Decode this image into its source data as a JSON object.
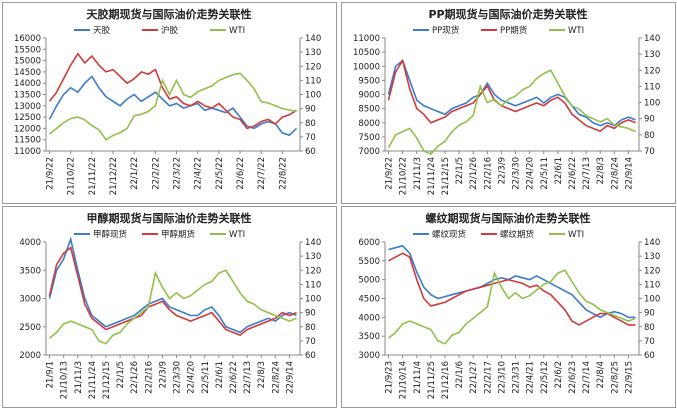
{
  "chart_data": [
    {
      "type": "line",
      "title": "天胶期现货与国际油价走势关联性",
      "legend": "top",
      "grid": false,
      "categories": [
        "21/9/22",
        null,
        null,
        "21/10/22",
        null,
        null,
        "21/11/22",
        null,
        null,
        "21/12/22",
        null,
        null,
        "22/1/22",
        null,
        null,
        "22/2/22",
        null,
        null,
        "22/3/22",
        null,
        null,
        "22/4/22",
        null,
        null,
        "22/5/22",
        null,
        null,
        "22/6/22",
        null,
        null,
        "22/7/22",
        null,
        null,
        "22/8/22",
        null,
        null
      ],
      "ylim": [
        11000,
        16000
      ],
      "yticks": [
        11000,
        11500,
        12000,
        12500,
        13000,
        13500,
        14000,
        14500,
        15000,
        15500,
        16000
      ],
      "y2lim": [
        60,
        140
      ],
      "y2ticks": [
        60,
        70,
        80,
        90,
        100,
        110,
        120,
        130,
        140
      ],
      "series": [
        {
          "name": "天胶",
          "color": "#3d7cc9",
          "values": [
            12400,
            13000,
            13500,
            13800,
            13600,
            14000,
            14300,
            13800,
            13400,
            13200,
            13000,
            13300,
            13500,
            13200,
            13400,
            13600,
            13300,
            13000,
            13100,
            12900,
            13000,
            13100,
            12800,
            12900,
            12800,
            12700,
            12900,
            12500,
            12100,
            12000,
            12200,
            12300,
            12200,
            11800,
            11700,
            12000
          ]
        },
        {
          "name": "沪胶",
          "color": "#d03a3a",
          "values": [
            13200,
            13600,
            14200,
            14800,
            15300,
            14900,
            15200,
            14800,
            14500,
            14600,
            14300,
            14000,
            14200,
            14500,
            14400,
            14600,
            13800,
            13300,
            13400,
            13100,
            13000,
            13200,
            13000,
            12900,
            13100,
            12800,
            12500,
            12400,
            12000,
            12100,
            12300,
            12400,
            12200,
            12500,
            12600,
            12800
          ]
        },
        {
          "name": "WTI",
          "color": "#92c04a",
          "axis": "y2",
          "values": [
            72,
            76,
            80,
            83,
            84,
            82,
            78,
            75,
            68,
            71,
            73,
            76,
            85,
            86,
            88,
            92,
            110,
            100,
            110,
            100,
            98,
            102,
            104,
            106,
            110,
            112,
            114,
            115,
            110,
            104,
            95,
            94,
            92,
            90,
            89,
            88
          ]
        }
      ]
    },
    {
      "type": "line",
      "title": "PP期现货与国际油价走势关联性",
      "legend": "top",
      "grid": false,
      "categories": [
        "21/9/22",
        null,
        "21/10/22",
        null,
        "21/11/3",
        null,
        "21/11/24",
        null,
        "21/12/15",
        null,
        "22/1/5",
        null,
        "22/1/26",
        null,
        "22/2/16",
        null,
        "22/3/9",
        null,
        "22/3/30",
        null,
        "22/4/20",
        null,
        "22/5/11",
        null,
        "22/6/1",
        null,
        "22/6/22",
        null,
        "22/7/13",
        null,
        "22/8/3",
        null,
        "22/8/24",
        null,
        "22/9/14",
        null
      ],
      "ylim": [
        7000,
        11000
      ],
      "yticks": [
        7000,
        7500,
        8000,
        8500,
        9000,
        9500,
        10000,
        10500,
        11000
      ],
      "y2lim": [
        70,
        140
      ],
      "y2ticks": [
        70,
        80,
        90,
        100,
        110,
        120,
        130,
        140
      ],
      "series": [
        {
          "name": "PP现货",
          "color": "#3d7cc9",
          "values": [
            9000,
            10000,
            10200,
            9500,
            8800,
            8600,
            8500,
            8400,
            8300,
            8500,
            8600,
            8700,
            8900,
            9000,
            9400,
            9000,
            8800,
            8700,
            8600,
            8700,
            8800,
            8900,
            8700,
            8900,
            9000,
            8900,
            8600,
            8300,
            8200,
            8000,
            7900,
            8000,
            7900,
            8100,
            8200,
            8100
          ]
        },
        {
          "name": "PP期货",
          "color": "#d03a3a",
          "values": [
            8800,
            9800,
            10200,
            9200,
            8500,
            8300,
            8000,
            8100,
            8200,
            8400,
            8500,
            8600,
            8700,
            9000,
            9300,
            8800,
            8600,
            8500,
            8400,
            8500,
            8600,
            8700,
            8600,
            8800,
            8900,
            8700,
            8300,
            8100,
            7900,
            7800,
            7700,
            7900,
            7800,
            8000,
            8100,
            8000
          ]
        },
        {
          "name": "WTI",
          "color": "#92c04a",
          "axis": "y2",
          "values": [
            72,
            80,
            82,
            84,
            78,
            70,
            68,
            73,
            76,
            82,
            86,
            88,
            92,
            110,
            100,
            102,
            98,
            102,
            104,
            108,
            110,
            115,
            118,
            120,
            112,
            104,
            98,
            96,
            92,
            90,
            88,
            90,
            86,
            85,
            84,
            82
          ]
        }
      ]
    },
    {
      "type": "line",
      "title": "甲醇期现货与国际油价走势关联性",
      "legend": "top",
      "grid": false,
      "categories": [
        "21/9/1",
        null,
        "21/10/13",
        null,
        "21/11/3",
        null,
        "21/11/24",
        null,
        "21/12/15",
        null,
        "22/1/5",
        null,
        "22/1/26",
        null,
        "22/2/16",
        null,
        "22/3/9",
        null,
        "22/3/30",
        null,
        "22/4/20",
        null,
        "22/5/11",
        null,
        "22/6/1",
        null,
        "22/6/22",
        null,
        "22/7/13",
        null,
        "22/8/3",
        null,
        "22/8/24",
        null,
        "22/9/14",
        null
      ],
      "ylim": [
        2000,
        4000
      ],
      "yticks": [
        2000,
        2500,
        3000,
        3500,
        4000
      ],
      "y2lim": [
        60,
        140
      ],
      "y2ticks": [
        60,
        70,
        80,
        90,
        100,
        110,
        120,
        130,
        140
      ],
      "series": [
        {
          "name": "甲醇现货",
          "color": "#3d7cc9",
          "values": [
            3000,
            3500,
            3700,
            4050,
            3500,
            3000,
            2700,
            2600,
            2500,
            2550,
            2600,
            2650,
            2700,
            2800,
            2900,
            2950,
            3000,
            2850,
            2800,
            2750,
            2700,
            2700,
            2800,
            2850,
            2700,
            2500,
            2450,
            2400,
            2500,
            2550,
            2600,
            2650,
            2600,
            2700,
            2750,
            2700
          ]
        },
        {
          "name": "甲醇期货",
          "color": "#d03a3a",
          "values": [
            3050,
            3600,
            3800,
            3900,
            3400,
            2900,
            2650,
            2550,
            2450,
            2500,
            2550,
            2600,
            2650,
            2700,
            2850,
            2900,
            2950,
            2800,
            2700,
            2650,
            2600,
            2650,
            2700,
            2750,
            2600,
            2450,
            2400,
            2350,
            2450,
            2500,
            2550,
            2600,
            2650,
            2750,
            2700,
            2750
          ]
        },
        {
          "name": "WTI",
          "color": "#92c04a",
          "axis": "y2",
          "values": [
            72,
            76,
            82,
            84,
            82,
            80,
            78,
            70,
            68,
            74,
            76,
            82,
            86,
            90,
            94,
            118,
            108,
            100,
            104,
            100,
            102,
            106,
            110,
            112,
            118,
            120,
            112,
            104,
            98,
            96,
            92,
            90,
            88,
            86,
            84,
            86
          ]
        }
      ]
    },
    {
      "type": "line",
      "title": "螺纹期现货与国际油价走势关联性",
      "legend": "top",
      "grid": false,
      "categories": [
        "21/9/23",
        null,
        "21/10/14",
        null,
        "21/11/4",
        null,
        "21/11/25",
        null,
        "21/12/16",
        null,
        "22/1/6",
        null,
        "22/1/27",
        null,
        "22/2/17",
        null,
        "22/3/10",
        null,
        "22/3/31",
        null,
        "22/4/21",
        null,
        "22/5/12",
        null,
        "22/6/2",
        null,
        "22/6/23",
        null,
        "22/7/14",
        null,
        "22/8/4",
        null,
        "22/8/25",
        null,
        "22/9/15",
        null
      ],
      "ylim": [
        3000,
        6000
      ],
      "yticks": [
        3000,
        3500,
        4000,
        4500,
        5000,
        5500,
        6000
      ],
      "y2lim": [
        60,
        140
      ],
      "y2ticks": [
        60,
        70,
        80,
        90,
        100,
        110,
        120,
        130,
        140
      ],
      "series": [
        {
          "name": "螺纹现货",
          "color": "#3d7cc9",
          "values": [
            5800,
            5850,
            5900,
            5700,
            5200,
            4800,
            4600,
            4500,
            4550,
            4600,
            4650,
            4700,
            4750,
            4800,
            4900,
            5000,
            5050,
            5000,
            5100,
            5050,
            5000,
            5100,
            5000,
            4900,
            4800,
            4700,
            4600,
            4400,
            4200,
            4100,
            4000,
            4100,
            4150,
            4100,
            4000,
            4000
          ]
        },
        {
          "name": "螺纹期货",
          "color": "#d03a3a",
          "values": [
            5500,
            5600,
            5700,
            5600,
            5000,
            4500,
            4300,
            4350,
            4400,
            4500,
            4600,
            4700,
            4750,
            4800,
            4850,
            4900,
            4950,
            5000,
            4950,
            4900,
            4800,
            4850,
            4700,
            4600,
            4400,
            4200,
            3900,
            3800,
            3900,
            4000,
            4100,
            4100,
            4000,
            3900,
            3800,
            3800
          ]
        },
        {
          "name": "WTI",
          "color": "#92c04a",
          "axis": "y2",
          "values": [
            72,
            76,
            82,
            84,
            82,
            80,
            78,
            70,
            68,
            74,
            76,
            82,
            86,
            90,
            94,
            118,
            108,
            100,
            104,
            100,
            102,
            106,
            110,
            112,
            118,
            120,
            112,
            104,
            98,
            96,
            92,
            90,
            88,
            86,
            84,
            86
          ]
        }
      ]
    }
  ]
}
